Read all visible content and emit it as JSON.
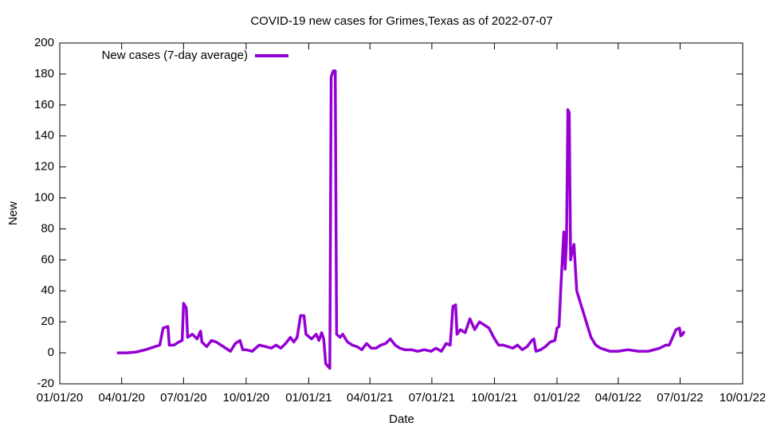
{
  "chart_data": {
    "type": "line",
    "title": "COVID-19 new cases for Grimes,Texas as of 2022-07-07",
    "x_label": "Date",
    "y_label": "New",
    "xlim": [
      "2020-01-01",
      "2022-10-01"
    ],
    "xticks": [
      {
        "value": "2020-01-01",
        "label": "01/01/20"
      },
      {
        "value": "2020-04-01",
        "label": "04/01/20"
      },
      {
        "value": "2020-07-01",
        "label": "07/01/20"
      },
      {
        "value": "2020-10-01",
        "label": "10/01/20"
      },
      {
        "value": "2021-01-01",
        "label": "01/01/21"
      },
      {
        "value": "2021-04-01",
        "label": "04/01/21"
      },
      {
        "value": "2021-07-01",
        "label": "07/01/21"
      },
      {
        "value": "2021-10-01",
        "label": "10/01/21"
      },
      {
        "value": "2022-01-01",
        "label": "01/01/22"
      },
      {
        "value": "2022-04-01",
        "label": "04/01/22"
      },
      {
        "value": "2022-07-01",
        "label": "07/01/22"
      },
      {
        "value": "2022-10-01",
        "label": "10/01/22"
      }
    ],
    "ylim": [
      -20,
      200
    ],
    "yticks": [
      -20,
      0,
      20,
      40,
      60,
      80,
      100,
      120,
      140,
      160,
      180,
      200
    ],
    "grid": false,
    "legend": "top-left",
    "x": [
      "2020-03-25",
      "2020-04-08",
      "2020-04-22",
      "2020-05-06",
      "2020-05-20",
      "2020-05-27",
      "2020-06-01",
      "2020-06-08",
      "2020-06-10",
      "2020-06-17",
      "2020-06-24",
      "2020-06-29",
      "2020-07-01",
      "2020-07-05",
      "2020-07-07",
      "2020-07-14",
      "2020-07-21",
      "2020-07-26",
      "2020-07-28",
      "2020-08-04",
      "2020-08-11",
      "2020-08-18",
      "2020-08-25",
      "2020-09-01",
      "2020-09-08",
      "2020-09-15",
      "2020-09-22",
      "2020-09-26",
      "2020-10-01",
      "2020-10-10",
      "2020-10-20",
      "2020-10-30",
      "2020-11-07",
      "2020-11-14",
      "2020-11-21",
      "2020-11-28",
      "2020-12-05",
      "2020-12-10",
      "2020-12-15",
      "2020-12-20",
      "2020-12-25",
      "2020-12-28",
      "2021-01-05",
      "2021-01-12",
      "2021-01-16",
      "2021-01-20",
      "2021-01-23",
      "2021-01-26",
      "2021-02-01",
      "2021-02-03",
      "2021-02-06",
      "2021-02-09",
      "2021-02-11",
      "2021-02-16",
      "2021-02-20",
      "2021-02-27",
      "2021-03-06",
      "2021-03-13",
      "2021-03-20",
      "2021-03-27",
      "2021-04-03",
      "2021-04-10",
      "2021-04-17",
      "2021-04-24",
      "2021-05-01",
      "2021-05-08",
      "2021-05-15",
      "2021-05-22",
      "2021-06-01",
      "2021-06-10",
      "2021-06-20",
      "2021-06-30",
      "2021-07-07",
      "2021-07-15",
      "2021-07-22",
      "2021-07-28",
      "2021-08-01",
      "2021-08-05",
      "2021-08-07",
      "2021-08-12",
      "2021-08-19",
      "2021-08-26",
      "2021-09-02",
      "2021-09-09",
      "2021-09-16",
      "2021-09-23",
      "2021-09-30",
      "2021-10-07",
      "2021-10-14",
      "2021-10-21",
      "2021-10-28",
      "2021-11-04",
      "2021-11-11",
      "2021-11-18",
      "2021-11-25",
      "2021-11-28",
      "2021-12-01",
      "2021-12-08",
      "2021-12-15",
      "2021-12-22",
      "2021-12-29",
      "2022-01-01",
      "2022-01-04",
      "2022-01-07",
      "2022-01-11",
      "2022-01-13",
      "2022-01-15",
      "2022-01-17",
      "2022-01-19",
      "2022-01-21",
      "2022-01-23",
      "2022-01-26",
      "2022-01-30",
      "2022-02-06",
      "2022-02-13",
      "2022-02-20",
      "2022-02-27",
      "2022-03-06",
      "2022-03-13",
      "2022-03-20",
      "2022-04-01",
      "2022-04-15",
      "2022-05-01",
      "2022-05-15",
      "2022-06-01",
      "2022-06-10",
      "2022-06-15",
      "2022-06-20",
      "2022-06-25",
      "2022-06-30",
      "2022-07-02",
      "2022-07-05",
      "2022-07-07"
    ],
    "series": [
      {
        "name": "New cases (7-day average)",
        "color": "#9400d3",
        "values": [
          0,
          0,
          0.5,
          2,
          4,
          5,
          16,
          17,
          5,
          5,
          7,
          8,
          32,
          29,
          10,
          12,
          9,
          14,
          7,
          4,
          8,
          7,
          5,
          3,
          1,
          6,
          8,
          2,
          2,
          1,
          5,
          4,
          3,
          5,
          3,
          6,
          10,
          7,
          10,
          24,
          24,
          12,
          9,
          12,
          8,
          13,
          9,
          -7,
          -10,
          178,
          182,
          182,
          12,
          10,
          12,
          7,
          5,
          4,
          2,
          6,
          3,
          3,
          5,
          6,
          9,
          5,
          3,
          2,
          2,
          1,
          2,
          1,
          3,
          1,
          6,
          5,
          30,
          31,
          12,
          15,
          13,
          22,
          15,
          20,
          18,
          16,
          10,
          5,
          5,
          4,
          3,
          5,
          2,
          4,
          8,
          9,
          1,
          2,
          4,
          7,
          8,
          16,
          17,
          45,
          78,
          54,
          72,
          157,
          155,
          60,
          65,
          70,
          40,
          30,
          20,
          10,
          5,
          3,
          2,
          1,
          1,
          2,
          1,
          1,
          3,
          5,
          5,
          10,
          15,
          16,
          11,
          12,
          14
        ]
      }
    ]
  }
}
